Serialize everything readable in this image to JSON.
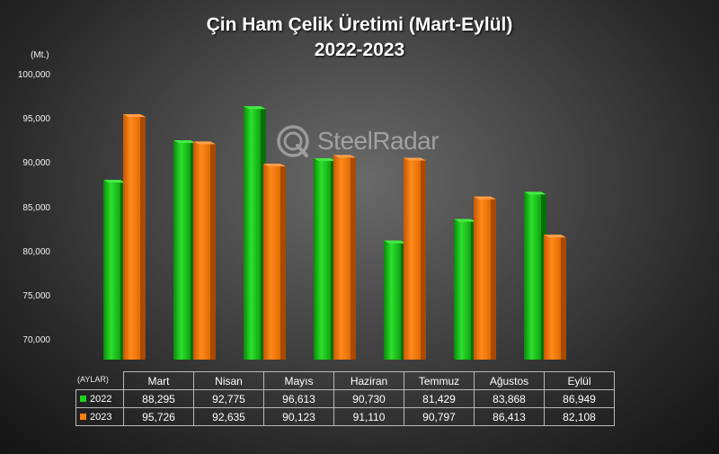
{
  "chart_data": {
    "type": "bar",
    "title": "Çin Ham Çelik Üretimi (Mart-Eylül)",
    "subtitle": "2022-2023",
    "unit": "(Mt.)",
    "table_header": "(AYLAR)",
    "categories": [
      "Mart",
      "Nisan",
      "Mayıs",
      "Haziran",
      "Temmuz",
      "Ağustos",
      "Eylül"
    ],
    "series": [
      {
        "name": "2022",
        "color": "#1ed21e",
        "values": [
          88295,
          92775,
          96613,
          90730,
          81429,
          83868,
          86949
        ],
        "labels": [
          "88,295",
          "92,775",
          "96,613",
          "90,730",
          "81,429",
          "83,868",
          "86,949"
        ]
      },
      {
        "name": "2023",
        "color": "#ff7f0e",
        "values": [
          95726,
          92635,
          90123,
          91110,
          90797,
          86413,
          82108
        ],
        "labels": [
          "95,726",
          "92,635",
          "90,123",
          "91,110",
          "90,797",
          "86,413",
          "82,108"
        ]
      }
    ],
    "ylim": [
      70000,
      100000
    ],
    "yticks": [
      "70,000",
      "75,000",
      "80,000",
      "85,000",
      "90,000",
      "95,000",
      "100,000"
    ],
    "ytick_values": [
      70000,
      75000,
      80000,
      85000,
      90000,
      95000,
      100000
    ],
    "grid": false,
    "legend": "data table"
  },
  "watermark": {
    "text": "SteelRadar",
    "icon": "steelradar-logo-icon"
  }
}
